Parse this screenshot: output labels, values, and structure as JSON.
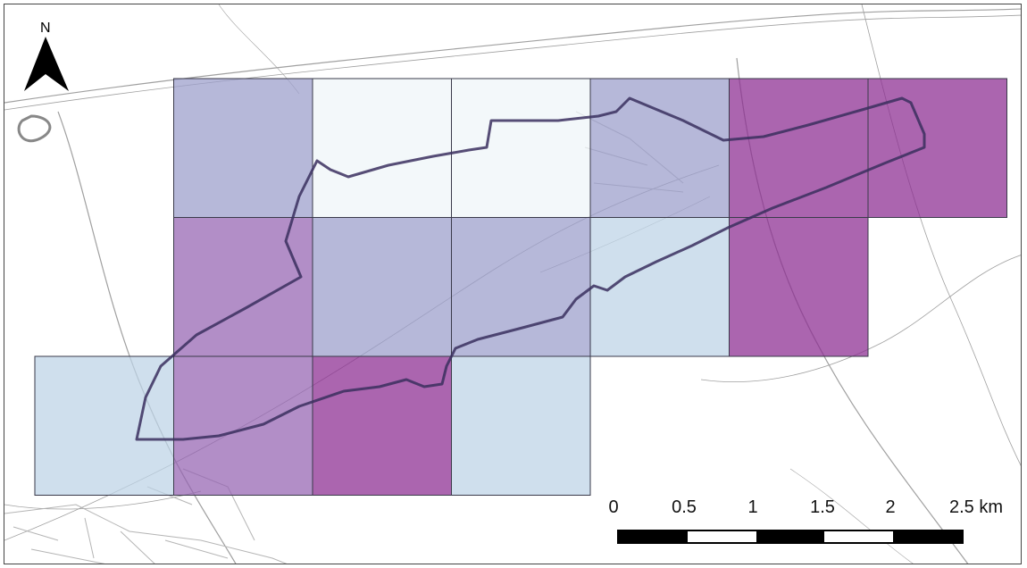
{
  "north_arrow": {
    "label": "N",
    "icon": "north-arrow-icon"
  },
  "scale_bar": {
    "ticks": [
      "0",
      "0.5",
      "1",
      "1.5",
      "2",
      "2.5 km"
    ],
    "segment_colors": [
      "#000000",
      "#ffffff",
      "#000000",
      "#ffffff",
      "#000000"
    ]
  },
  "grid": {
    "fill_opacity": 0.72,
    "cells": [
      {
        "row": 0,
        "col": 1,
        "color": "#9a9ccb"
      },
      {
        "row": 0,
        "col": 2,
        "color": "#eef5f8"
      },
      {
        "row": 0,
        "col": 3,
        "color": "#eef5f8"
      },
      {
        "row": 0,
        "col": 4,
        "color": "#9a9ccb"
      },
      {
        "row": 0,
        "col": 5,
        "color": "#8b2a90"
      },
      {
        "row": 0,
        "col": 6,
        "color": "#8b2a90"
      },
      {
        "row": 1,
        "col": 1,
        "color": "#9463b2"
      },
      {
        "row": 1,
        "col": 2,
        "color": "#9a9ccb"
      },
      {
        "row": 1,
        "col": 3,
        "color": "#9a9ccb"
      },
      {
        "row": 1,
        "col": 4,
        "color": "#bcd2e6"
      },
      {
        "row": 1,
        "col": 5,
        "color": "#8b2a90"
      },
      {
        "row": 2,
        "col": 0,
        "color": "#bcd2e6"
      },
      {
        "row": 2,
        "col": 1,
        "color": "#9463b2"
      },
      {
        "row": 2,
        "col": 2,
        "color": "#8b2a90"
      },
      {
        "row": 2,
        "col": 3,
        "color": "#bcd2e6"
      }
    ]
  },
  "colors": {
    "boundary": "#3a2f5e",
    "roads": "#9a9a9a",
    "background": "#ffffff"
  }
}
